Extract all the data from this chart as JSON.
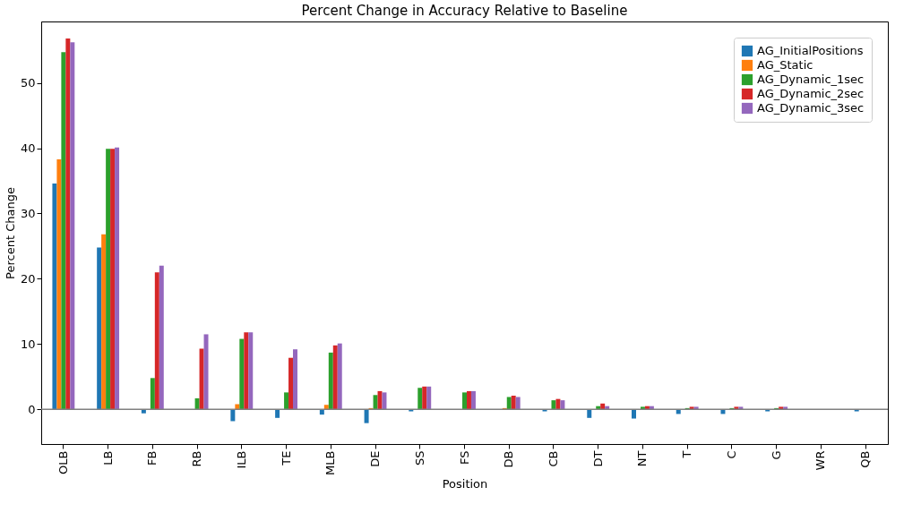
{
  "chart_data": {
    "type": "bar",
    "title": "Percent Change in Accuracy Relative to Baseline",
    "xlabel": "Position",
    "ylabel": "Percent Change",
    "categories": [
      "OLB",
      "LB",
      "FB",
      "RB",
      "ILB",
      "TE",
      "MLB",
      "DE",
      "SS",
      "FS",
      "DB",
      "CB",
      "DT",
      "NT",
      "T",
      "C",
      "G",
      "WR",
      "QB"
    ],
    "series": [
      {
        "name": "AG_InitialPositions",
        "color": "#1f77b4",
        "values": [
          34.6,
          24.8,
          -0.6,
          0,
          -1.8,
          -1.3,
          -0.8,
          -2.1,
          -0.3,
          null,
          0,
          -0.3,
          -1.3,
          -1.4,
          -0.7,
          -0.7,
          -0.3,
          null,
          -0.3
        ]
      },
      {
        "name": "AG_Static",
        "color": "#ff7f0e",
        "values": [
          38.3,
          26.8,
          0,
          0,
          0.8,
          0,
          0.7,
          0.2,
          0,
          0,
          0.2,
          0,
          0,
          0,
          0,
          0,
          0,
          0,
          0
        ]
      },
      {
        "name": "AG_Dynamic_1sec",
        "color": "#2ca02c",
        "values": [
          54.7,
          39.9,
          4.8,
          1.7,
          10.8,
          2.6,
          8.7,
          2.2,
          3.3,
          2.6,
          1.9,
          1.4,
          0.5,
          0.4,
          0.2,
          0.2,
          0.2,
          0,
          0
        ]
      },
      {
        "name": "AG_Dynamic_2sec",
        "color": "#d62728",
        "values": [
          56.8,
          39.9,
          21.0,
          9.3,
          11.8,
          7.9,
          9.8,
          2.8,
          3.5,
          2.8,
          2.1,
          1.6,
          0.9,
          0.5,
          0.4,
          0.4,
          0.4,
          0,
          0
        ]
      },
      {
        "name": "AG_Dynamic_3sec",
        "color": "#9467bd",
        "values": [
          56.2,
          40.1,
          22.0,
          11.5,
          11.8,
          9.2,
          10.1,
          2.6,
          3.5,
          2.8,
          1.9,
          1.4,
          0.5,
          0.5,
          0.4,
          0.4,
          0.4,
          0,
          0
        ]
      }
    ],
    "ylim": [
      -5.3,
      59.4
    ],
    "yticks": [
      0,
      10,
      20,
      30,
      40,
      50
    ],
    "ref_lines": [
      {
        "axis": "y",
        "value": 0,
        "color": "#808080"
      }
    ],
    "grid": false,
    "legend": "top right"
  }
}
